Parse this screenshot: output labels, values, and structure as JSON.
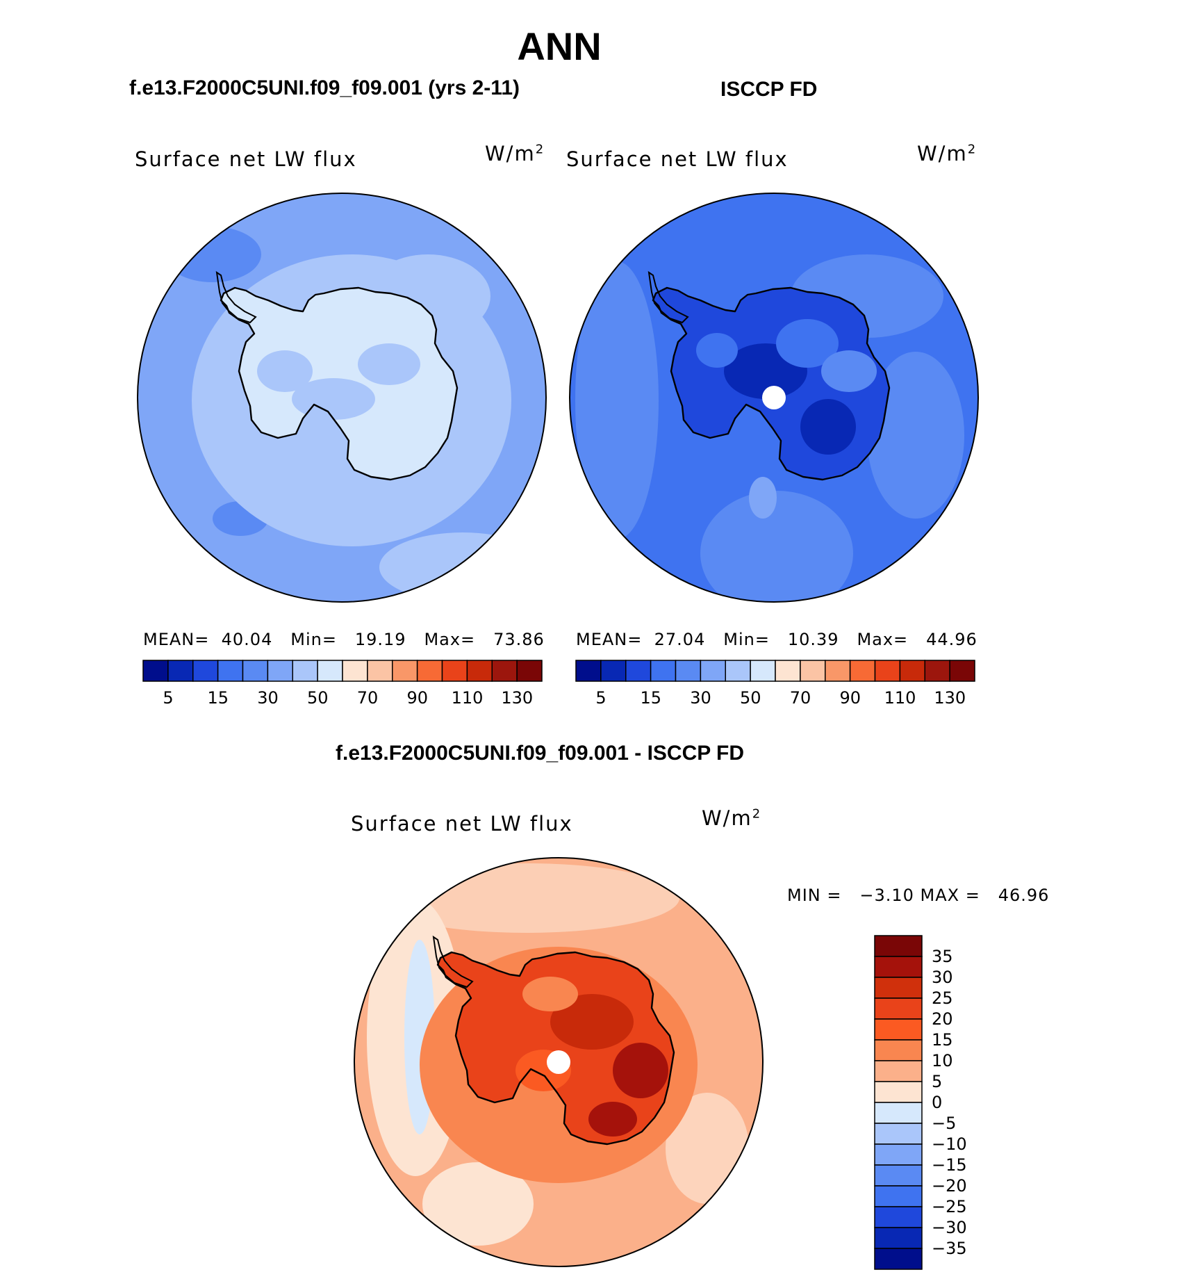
{
  "figure": {
    "title": "ANN"
  },
  "panels": [
    {
      "id": "model",
      "header": "f.e13.F2000C5UNI.f09_f09.001 (yrs 2-11)",
      "variable": "Surface net LW flux",
      "units_base": "W/m",
      "units_exp": "2",
      "stats": {
        "mean_label": "MEAN=",
        "mean": "40.04",
        "min_label": "Min=",
        "min": "19.19",
        "max_label": "Max=",
        "max": "73.86"
      },
      "base_color": "#7fa6f7"
    },
    {
      "id": "obs",
      "header": "ISCCP FD",
      "variable": "Surface net LW flux",
      "units_base": "W/m",
      "units_exp": "2",
      "stats": {
        "mean_label": "MEAN=",
        "mean": "27.04",
        "min_label": "Min=",
        "min": "10.39",
        "max_label": "Max=",
        "max": "44.96"
      },
      "base_color": "#3f73f0"
    },
    {
      "id": "diff",
      "header": "f.e13.F2000C5UNI.f09_f09.001 - ISCCP FD",
      "variable": "Surface net LW flux",
      "units_base": "W/m",
      "units_exp": "2",
      "stats_line": "MIN =   −3.10 MAX =   46.96",
      "base_color": "#fbc4a5"
    }
  ],
  "colorbar_abs": {
    "colors": [
      "#000e8c",
      "#0828b4",
      "#1f48dc",
      "#3f73f0",
      "#5a8af3",
      "#7fa6f7",
      "#aac6fa",
      "#d6e8fc",
      "#fde4d2",
      "#fbc4a5",
      "#f99768",
      "#f76a35",
      "#e9431a",
      "#c82a0a",
      "#9c160d",
      "#7a0606"
    ],
    "tick_labels": [
      "5",
      "15",
      "30",
      "50",
      "70",
      "90",
      "110",
      "130"
    ]
  },
  "colorbar_diff": {
    "colors": [
      "#7a0606",
      "#a5120b",
      "#d0300c",
      "#e9431a",
      "#fb5a22",
      "#f98650",
      "#fbb08a",
      "#fde4d2",
      "#d6e8fc",
      "#aac6fa",
      "#7fa6f7",
      "#5a8af3",
      "#3f73f0",
      "#1f48dc",
      "#0828b4",
      "#000e8c"
    ],
    "tick_labels": [
      "35",
      "30",
      "25",
      "20",
      "15",
      "10",
      "5",
      "0",
      "−5",
      "−10",
      "−15",
      "−20",
      "−25",
      "−30",
      "−35"
    ]
  }
}
